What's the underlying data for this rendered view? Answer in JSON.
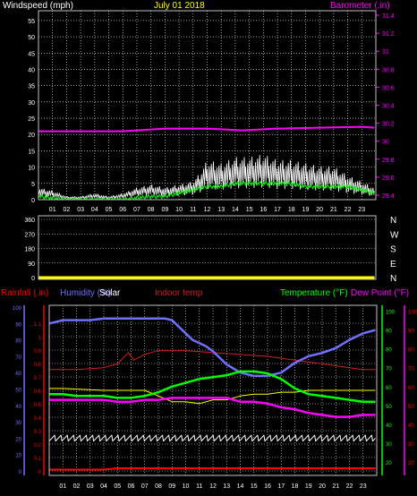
{
  "chart_data": [
    {
      "type": "line",
      "title": "July 01 2018",
      "left_axis_label": "Windspeed (mph)",
      "right_axis_label": "Barometer (.in)",
      "x_ticks": [
        "01",
        "02",
        "03",
        "04",
        "05",
        "06",
        "07",
        "08",
        "09",
        "10",
        "11",
        "12",
        "13",
        "14",
        "15",
        "16",
        "17",
        "18",
        "19",
        "20",
        "21",
        "22",
        "23"
      ],
      "y_left_ticks": [
        "0",
        "5",
        "10",
        "15",
        "20",
        "25",
        "30",
        "35",
        "40",
        "45",
        "50",
        "55"
      ],
      "y_left_range": [
        0,
        58
      ],
      "y_right_ticks": [
        "29.4",
        "29.6",
        "29.8",
        "30",
        "30.2",
        "30.4",
        "30.6",
        "30.8",
        "31",
        "31.2",
        "31.4"
      ],
      "y_right_range": [
        29.35,
        31.45
      ],
      "grid": true,
      "colors": {
        "barometer": "#ff00ff",
        "wind_gust": "#ffffff",
        "wind_avg": "#00ff00",
        "title": "#ffff00"
      },
      "series": [
        {
          "key": "barometer",
          "axis": "right",
          "x": [
            0,
            6,
            9,
            12,
            14.5,
            17,
            20,
            23,
            23.9
          ],
          "values": [
            30.11,
            30.11,
            30.14,
            30.14,
            30.12,
            30.14,
            30.15,
            30.16,
            30.15
          ]
        },
        {
          "key": "wind_gust",
          "axis": "left",
          "x": [
            0,
            1,
            2,
            3,
            4,
            5,
            6,
            7,
            8,
            9,
            10,
            11,
            11.5,
            12,
            13,
            14,
            15,
            16,
            17,
            18,
            19,
            20,
            21,
            22,
            23,
            23.9
          ],
          "values": [
            4,
            3,
            1,
            1,
            2,
            1,
            2,
            4,
            5,
            4,
            5,
            6,
            9,
            13,
            12,
            14,
            14,
            15,
            13,
            13,
            12,
            11,
            11,
            8,
            6,
            4
          ]
        },
        {
          "key": "wind_avg",
          "axis": "left",
          "x": [
            0,
            2,
            4,
            6,
            8,
            9,
            10,
            11,
            12,
            13,
            14,
            15,
            16,
            17,
            18,
            19,
            20,
            21,
            22,
            23,
            23.9
          ],
          "values": [
            1,
            0,
            0,
            0,
            1,
            1,
            2,
            3,
            4,
            4,
            5,
            5,
            5,
            5,
            5,
            4,
            4,
            4,
            4,
            3,
            2
          ]
        }
      ]
    },
    {
      "type": "scatter",
      "left_ticks": [
        "360",
        "270",
        "180",
        "90",
        "0"
      ],
      "right_labels": [
        "N",
        "W",
        "S",
        "E",
        "N"
      ],
      "y_range": [
        0,
        360
      ],
      "x_ticks": [],
      "grid": true,
      "colors": {
        "direction": "#ffff00"
      },
      "series": [
        {
          "key": "wind_direction",
          "x": [
            0,
            23.9
          ],
          "values": [
            0,
            0
          ]
        }
      ]
    },
    {
      "type": "line",
      "labels": {
        "rainfall": "Rainfall (.in)",
        "humidity": "Humidity (%)",
        "solar": "Solar",
        "indoor": "Indoor temp",
        "temperature": "Temperature (°F)",
        "dewpoint": "Dew Point (°F)"
      },
      "x_ticks": [
        "01",
        "02",
        "03",
        "04",
        "05",
        "06",
        "07",
        "08",
        "09",
        "10",
        "11",
        "12",
        "13",
        "14",
        "15",
        "16",
        "17",
        "18",
        "19",
        "20",
        "21",
        "22",
        "23"
      ],
      "y_rain_ticks": [
        "0",
        "0.1",
        "0.2",
        "0.3",
        "0.4",
        "0.5",
        "0.6",
        "0.7",
        "0.8",
        "0.9",
        "1",
        "1.1"
      ],
      "y_rain_range": [
        0,
        1.2
      ],
      "y_humidity_ticks": [
        "0",
        "10",
        "20",
        "30",
        "40",
        "50",
        "60",
        "70",
        "80",
        "90",
        "100"
      ],
      "y_humidity_range": [
        0,
        100
      ],
      "y_temp_ticks": [
        "20",
        "30",
        "40",
        "50",
        "60",
        "70",
        "80",
        "90",
        "100"
      ],
      "y_temp_range": [
        13,
        103
      ],
      "grid": true,
      "colors": {
        "rainfall": "#ff0000",
        "humidity": "#7070ff",
        "solar": "#ffffff",
        "indoor": "#cc2020",
        "temperature": "#00ff00",
        "dewpoint": "#ff00ff",
        "extra1": "#ffff00",
        "extra2": "#cccc00"
      },
      "series": [
        {
          "key": "humidity",
          "axis": "humidity",
          "x": [
            0,
            1,
            2,
            3,
            4,
            5,
            6,
            7,
            8,
            8.5,
            9,
            9.5,
            10,
            10.5,
            11,
            11.5,
            12,
            13,
            14,
            15,
            16,
            17,
            18,
            19,
            20,
            21,
            22,
            23,
            23.9
          ],
          "values": [
            90,
            92,
            92,
            92,
            93,
            93,
            93,
            93,
            93,
            93,
            92,
            88,
            84,
            80,
            78,
            76,
            73,
            65,
            60,
            58,
            58,
            60,
            66,
            70,
            72,
            75,
            80,
            84,
            86
          ]
        },
        {
          "key": "temperature",
          "axis": "temp",
          "x": [
            0,
            1,
            2,
            3,
            4,
            5,
            6,
            7,
            8,
            9,
            10,
            11,
            12,
            13,
            14,
            15,
            16,
            17,
            18,
            19,
            20,
            21,
            22,
            23,
            23.9
          ],
          "values": [
            56,
            56,
            55,
            55,
            55,
            54,
            54,
            55,
            57,
            60,
            62,
            64,
            65,
            66,
            68,
            68,
            67,
            64,
            59,
            56,
            55,
            54,
            53,
            52,
            52
          ]
        },
        {
          "key": "dewpoint",
          "axis": "temp",
          "x": [
            0,
            1,
            2,
            3,
            4,
            5,
            6,
            7,
            8,
            9,
            10,
            11,
            12,
            13,
            14,
            15,
            16,
            17,
            18,
            19,
            20,
            21,
            22,
            23,
            23.9
          ],
          "values": [
            53,
            53,
            53,
            53,
            53,
            52,
            52,
            53,
            53,
            54,
            54,
            54,
            54,
            54,
            52,
            52,
            51,
            49,
            48,
            46,
            45,
            44,
            44,
            45,
            45
          ]
        },
        {
          "key": "indoor",
          "axis": "temp",
          "x": [
            0,
            2,
            4,
            5,
            5.8,
            6.2,
            7,
            8,
            10,
            12,
            14,
            16,
            18,
            20,
            22,
            23,
            23.9
          ],
          "values": [
            69,
            69,
            70,
            72,
            78,
            74,
            77,
            79,
            79,
            78,
            77,
            76,
            74,
            72,
            70,
            69,
            69
          ]
        },
        {
          "key": "extra1",
          "axis": "temp",
          "x": [
            0,
            1,
            4,
            7,
            9,
            10,
            11,
            12,
            13,
            14,
            15,
            16,
            17,
            18,
            19,
            20,
            21,
            22,
            23,
            23.9
          ],
          "values": [
            59,
            59,
            58,
            58,
            52,
            52,
            51,
            53,
            53,
            55,
            56,
            56,
            57,
            57,
            58,
            58,
            58,
            58,
            58,
            58
          ]
        },
        {
          "key": "solar",
          "axis": "humidity",
          "x": [
            0,
            23.9
          ],
          "values": [
            20,
            20
          ]
        },
        {
          "key": "rainfall",
          "axis": "rain",
          "x": [
            0,
            4,
            5,
            6,
            23.9
          ],
          "values": [
            0.01,
            0.01,
            0.02,
            0.02,
            0.02
          ]
        }
      ]
    }
  ]
}
